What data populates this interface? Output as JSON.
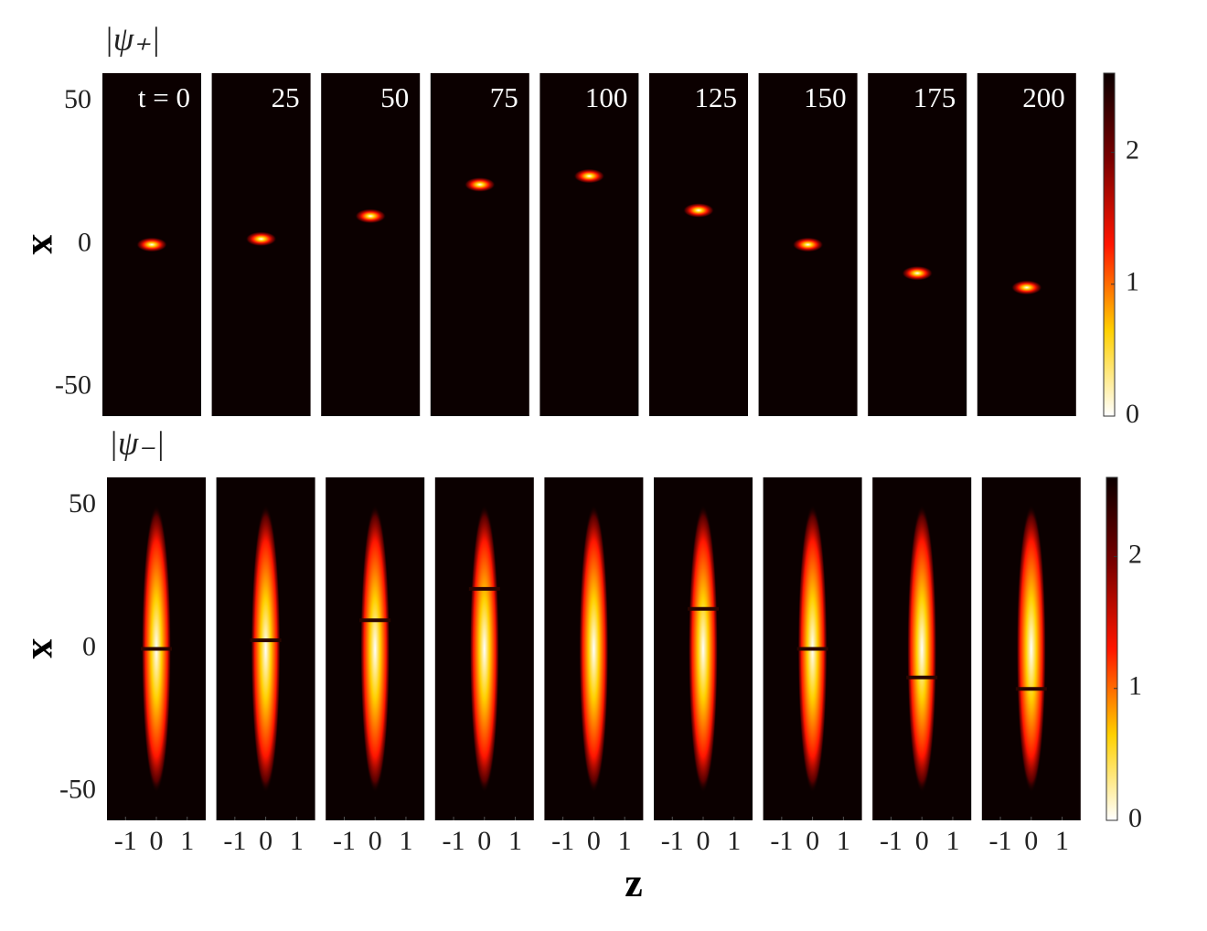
{
  "chart_data": [
    {
      "type": "heatmap",
      "marker": "bright",
      "title": "|ψ₊|",
      "ylabel": "x",
      "x": [
        {
          "value": 0,
          "label": "t = 0"
        },
        25,
        50,
        75,
        100,
        125,
        150,
        175,
        200
      ],
      "values": [
        0,
        2,
        10,
        21,
        24,
        12,
        0,
        -10,
        -15
      ],
      "ylim": [
        -60,
        60
      ],
      "yticks": [
        -50,
        0,
        50
      ],
      "xlim": [
        -1.6,
        1.6
      ],
      "clim": [
        0,
        2.6
      ],
      "cticks": [
        0,
        1,
        2
      ],
      "colormap": [
        "#0b0000",
        "#7a0000",
        "#ff1500",
        "#ffd000",
        "#ffffff"
      ]
    },
    {
      "type": "heatmap",
      "marker": "dark",
      "title": "|ψ₋|",
      "ylabel": "x",
      "xlabel": "z",
      "values": [
        0,
        3,
        10,
        21,
        null,
        14,
        0,
        -10,
        -14
      ],
      "ylim": [
        -60,
        60
      ],
      "yticks": [
        -50,
        0,
        50
      ],
      "xlim": [
        -1.6,
        1.6
      ],
      "xticks": [
        -1,
        0,
        1
      ],
      "clim": [
        0,
        2.6
      ],
      "cticks": [
        0,
        1,
        2
      ],
      "colormap": [
        "#0b0000",
        "#7a0000",
        "#ff1500",
        "#ffd000",
        "#ffffff"
      ]
    }
  ]
}
